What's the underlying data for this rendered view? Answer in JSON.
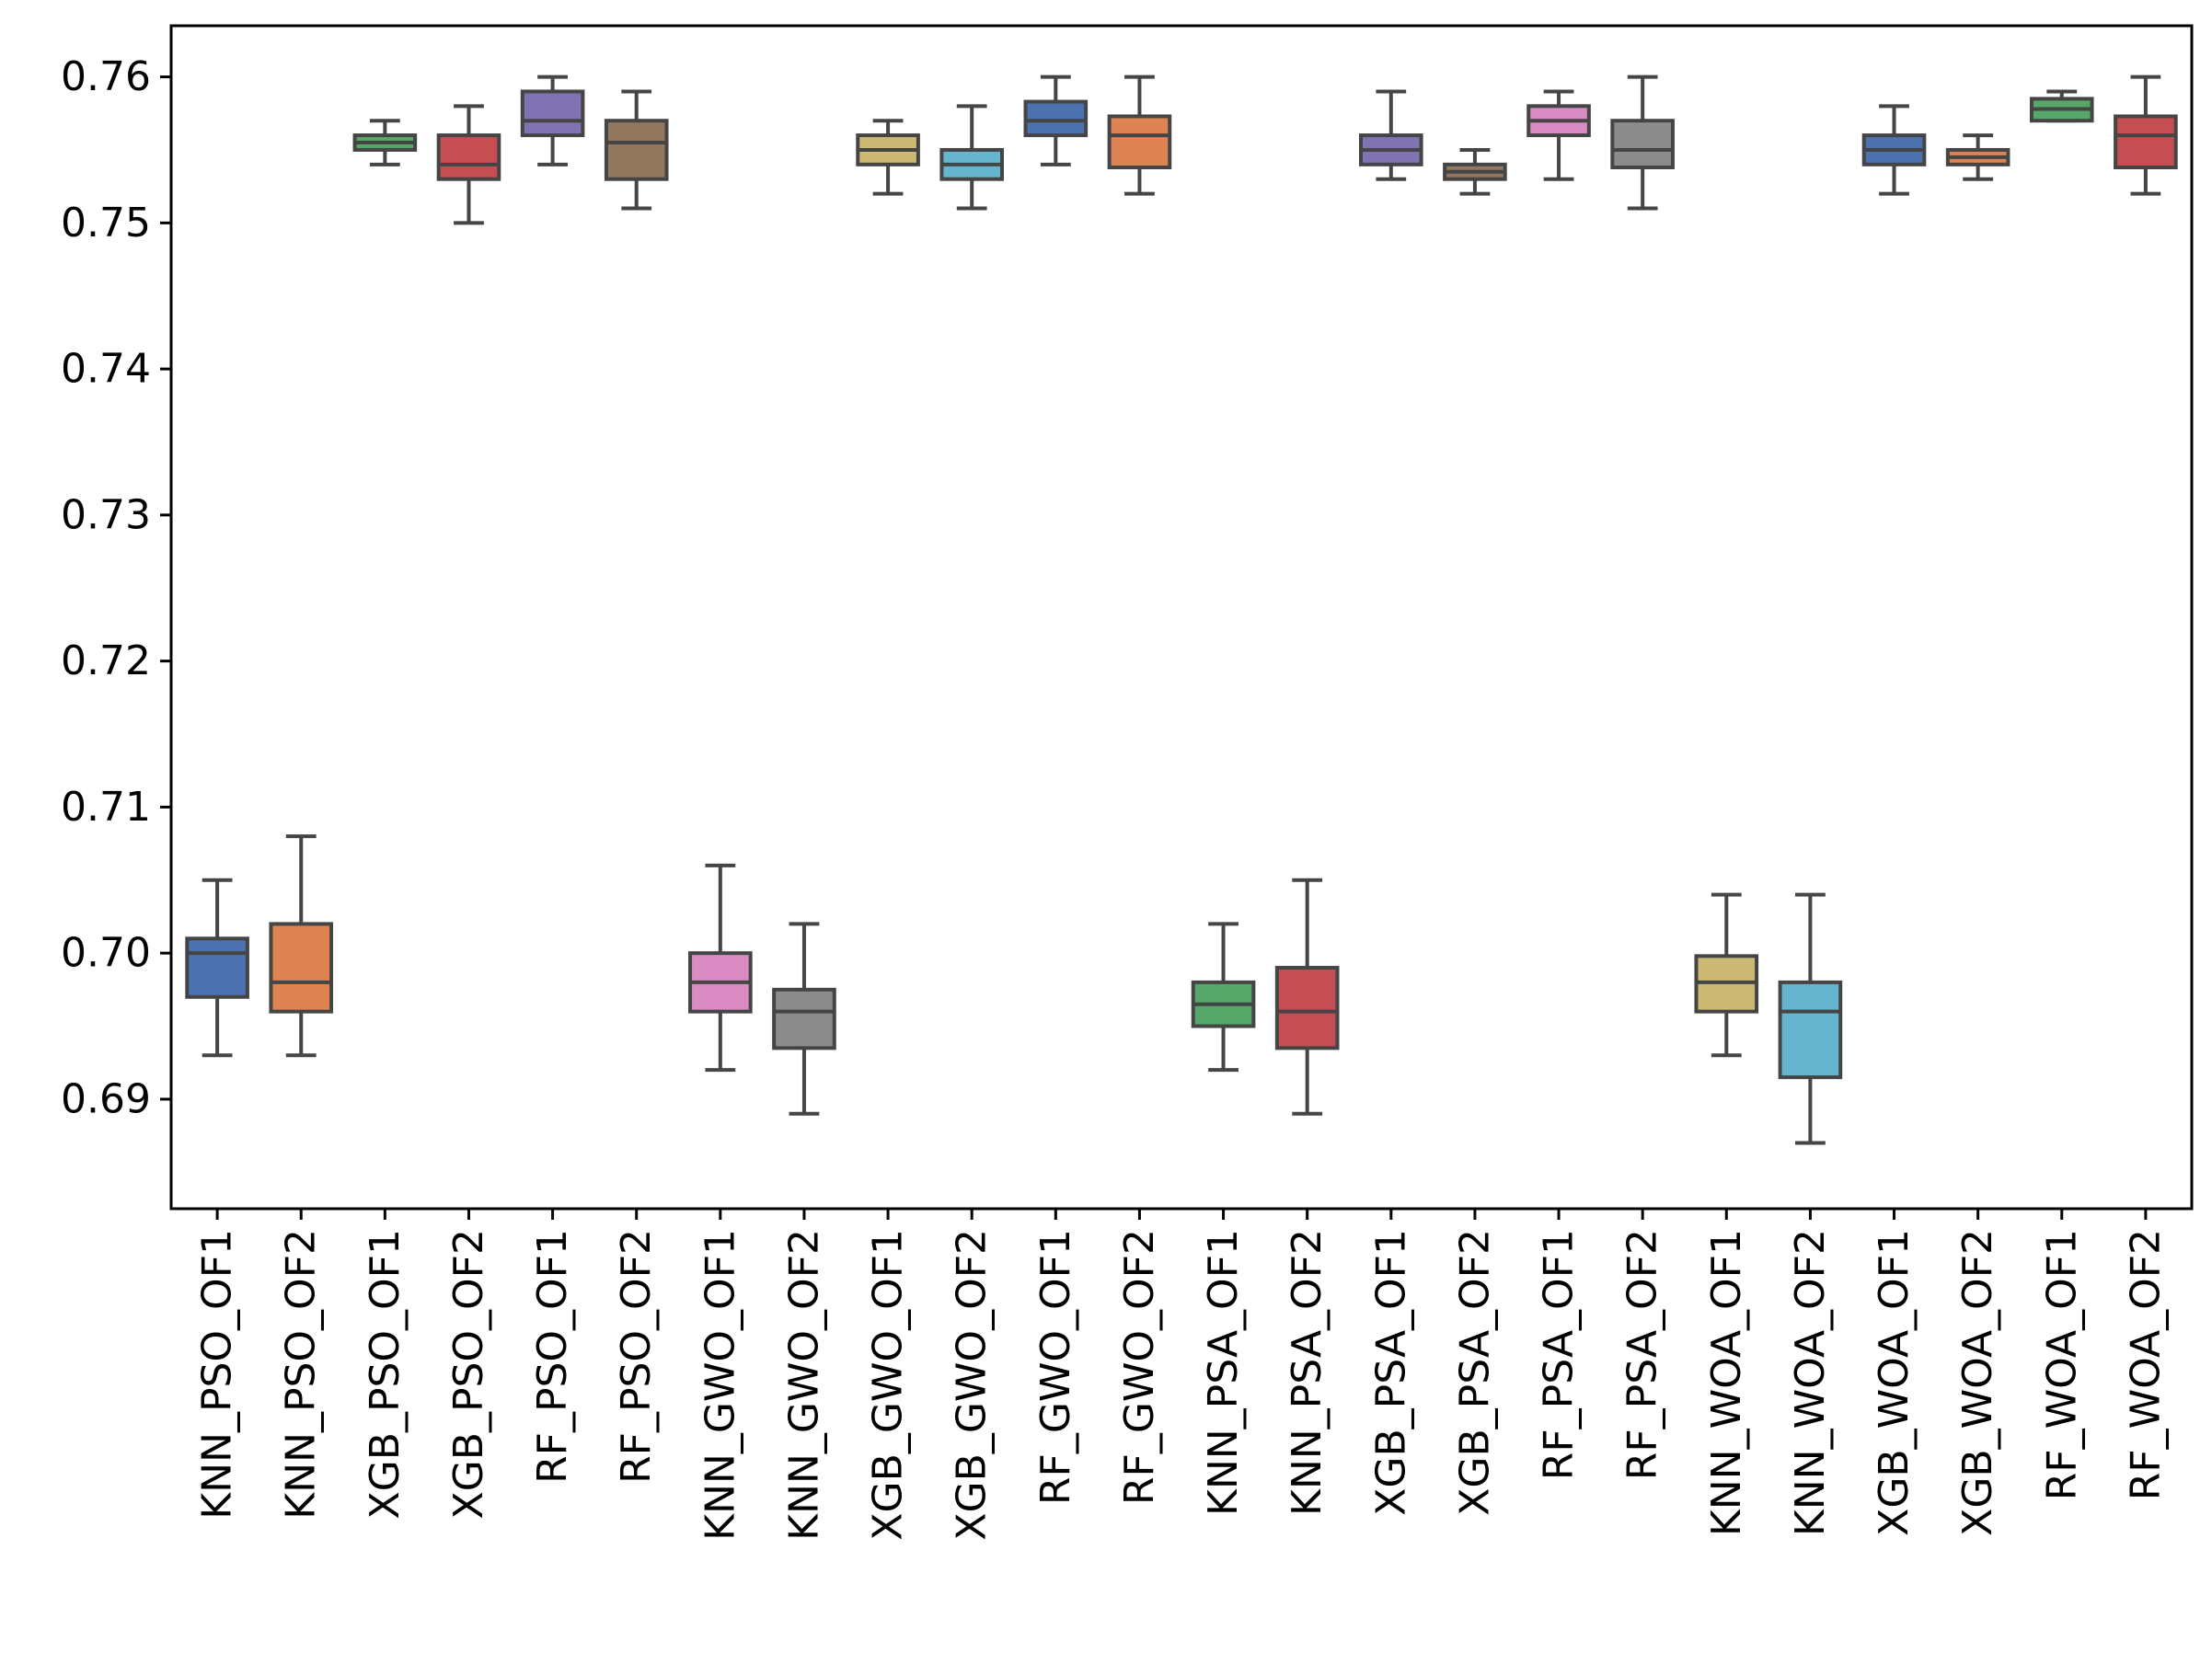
{
  "chart_data": {
    "type": "box",
    "title": "",
    "xlabel": "",
    "ylabel": "",
    "ylim": [
      0.6825,
      0.7635
    ],
    "yticks": [
      "0.69",
      "0.70",
      "0.71",
      "0.72",
      "0.73",
      "0.74",
      "0.75",
      "0.76"
    ],
    "grid": false,
    "categories": [
      "KNN_PSO_OF1",
      "KNN_PSO_OF2",
      "XGB_PSO_OF1",
      "XGB_PSO_OF2",
      "RF_PSO_OF1",
      "RF_PSO_OF2",
      "KNN_GWO_OF1",
      "KNN_GWO_OF2",
      "XGB_GWO_OF1",
      "XGB_GWO_OF2",
      "RF_GWO_OF1",
      "RF_GWO_OF2",
      "KNN_PSA_OF1",
      "KNN_PSA_OF2",
      "XGB_PSA_OF1",
      "XGB_PSA_OF2",
      "RF_PSA_OF1",
      "RF_PSA_OF2",
      "KNN_WOA_OF1",
      "KNN_WOA_OF2",
      "XGB_WOA_OF1",
      "XGB_WOA_OF2",
      "RF_WOA_OF1",
      "RF_WOA_OF2"
    ],
    "colors": [
      "#4c72b0",
      "#dd8452",
      "#55a868",
      "#c44e52",
      "#8172b3",
      "#937860",
      "#da8bc3",
      "#8c8c8c",
      "#ccb974",
      "#64b5cd"
    ],
    "boxes": [
      {
        "min": 0.693,
        "q1": 0.697,
        "median": 0.7,
        "q3": 0.701,
        "max": 0.705
      },
      {
        "min": 0.693,
        "q1": 0.696,
        "median": 0.698,
        "q3": 0.702,
        "max": 0.708
      },
      {
        "min": 0.754,
        "q1": 0.755,
        "median": 0.7555,
        "q3": 0.756,
        "max": 0.757
      },
      {
        "min": 0.75,
        "q1": 0.753,
        "median": 0.754,
        "q3": 0.756,
        "max": 0.758
      },
      {
        "min": 0.754,
        "q1": 0.756,
        "median": 0.757,
        "q3": 0.759,
        "max": 0.76
      },
      {
        "min": 0.751,
        "q1": 0.753,
        "median": 0.7555,
        "q3": 0.757,
        "max": 0.759
      },
      {
        "min": 0.692,
        "q1": 0.696,
        "median": 0.698,
        "q3": 0.7,
        "max": 0.706
      },
      {
        "min": 0.689,
        "q1": 0.6935,
        "median": 0.696,
        "q3": 0.6975,
        "max": 0.702
      },
      {
        "min": 0.752,
        "q1": 0.754,
        "median": 0.755,
        "q3": 0.756,
        "max": 0.757
      },
      {
        "min": 0.751,
        "q1": 0.753,
        "median": 0.754,
        "q3": 0.755,
        "max": 0.758
      },
      {
        "min": 0.754,
        "q1": 0.756,
        "median": 0.757,
        "q3": 0.7583,
        "max": 0.76
      },
      {
        "min": 0.752,
        "q1": 0.7538,
        "median": 0.756,
        "q3": 0.7573,
        "max": 0.76
      },
      {
        "min": 0.692,
        "q1": 0.695,
        "median": 0.6965,
        "q3": 0.698,
        "max": 0.702
      },
      {
        "min": 0.689,
        "q1": 0.6935,
        "median": 0.696,
        "q3": 0.699,
        "max": 0.705
      },
      {
        "min": 0.753,
        "q1": 0.754,
        "median": 0.755,
        "q3": 0.756,
        "max": 0.759
      },
      {
        "min": 0.752,
        "q1": 0.753,
        "median": 0.7535,
        "q3": 0.754,
        "max": 0.755
      },
      {
        "min": 0.753,
        "q1": 0.756,
        "median": 0.757,
        "q3": 0.758,
        "max": 0.759
      },
      {
        "min": 0.751,
        "q1": 0.7538,
        "median": 0.755,
        "q3": 0.757,
        "max": 0.76
      },
      {
        "min": 0.693,
        "q1": 0.696,
        "median": 0.698,
        "q3": 0.6998,
        "max": 0.704
      },
      {
        "min": 0.687,
        "q1": 0.6915,
        "median": 0.696,
        "q3": 0.698,
        "max": 0.704
      },
      {
        "min": 0.752,
        "q1": 0.754,
        "median": 0.755,
        "q3": 0.756,
        "max": 0.758
      },
      {
        "min": 0.753,
        "q1": 0.754,
        "median": 0.7545,
        "q3": 0.755,
        "max": 0.756
      },
      {
        "min": 0.757,
        "q1": 0.757,
        "median": 0.7578,
        "q3": 0.7585,
        "max": 0.759
      },
      {
        "min": 0.752,
        "q1": 0.7538,
        "median": 0.756,
        "q3": 0.7573,
        "max": 0.76
      }
    ]
  }
}
